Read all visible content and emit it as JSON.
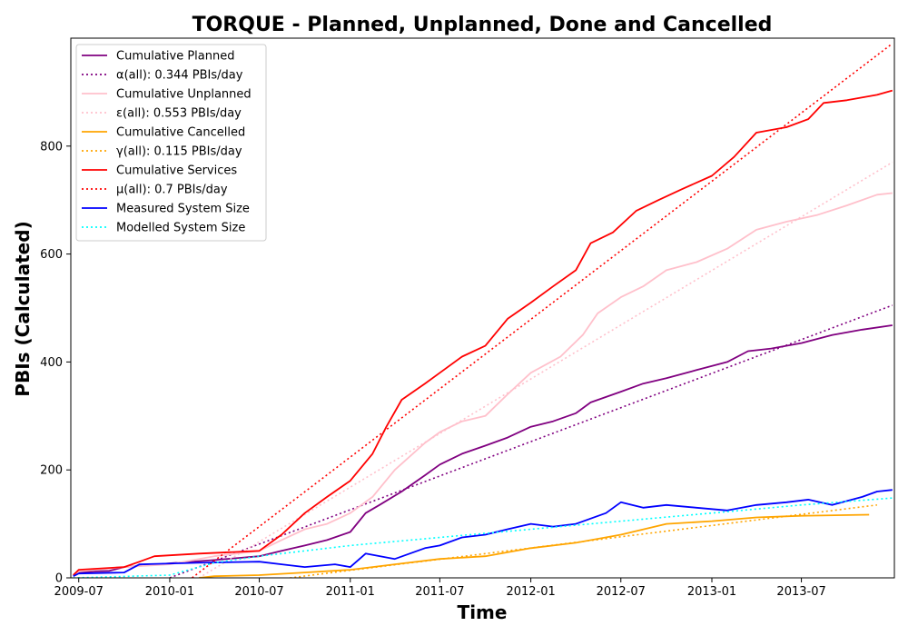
{
  "chart_data": {
    "type": "line",
    "title": "TORQUE - Planned, Unplanned, Done  and Cancelled",
    "xlabel": "Time",
    "ylabel": "PBIs (Calculated)",
    "xlim": [
      "2009-06-15",
      "2014-01-05"
    ],
    "ylim": [
      0,
      1000
    ],
    "x_ticks": [
      "2009-07",
      "2010-01",
      "2010-07",
      "2011-01",
      "2011-07",
      "2012-01",
      "2012-07",
      "2013-01",
      "2013-07"
    ],
    "y_ticks": [
      0,
      200,
      400,
      600,
      800
    ],
    "grid": false,
    "legend_position": "top-left",
    "series": [
      {
        "name": "Cumulative Planned",
        "color": "#800080",
        "style": "solid",
        "points": [
          [
            "2009-06-20",
            5
          ],
          [
            "2009-07-01",
            10
          ],
          [
            "2009-08-01",
            12
          ],
          [
            "2009-09-01",
            13
          ],
          [
            "2009-10-01",
            20
          ],
          [
            "2009-11-01",
            22
          ],
          [
            "2010-01-01",
            27
          ],
          [
            "2010-04-01",
            33
          ],
          [
            "2010-07-01",
            40
          ],
          [
            "2010-08-15",
            50
          ],
          [
            "2010-10-01",
            60
          ],
          [
            "2010-11-15",
            70
          ],
          [
            "2011-01-01",
            85
          ],
          [
            "2011-02-01",
            120
          ],
          [
            "2011-03-01",
            135
          ],
          [
            "2011-04-15",
            160
          ],
          [
            "2011-06-01",
            190
          ],
          [
            "2011-07-01",
            210
          ],
          [
            "2011-08-15",
            230
          ],
          [
            "2011-10-01",
            245
          ],
          [
            "2011-11-15",
            260
          ],
          [
            "2012-01-01",
            280
          ],
          [
            "2012-02-15",
            290
          ],
          [
            "2012-04-01",
            305
          ],
          [
            "2012-05-01",
            325
          ],
          [
            "2012-07-01",
            345
          ],
          [
            "2012-08-15",
            360
          ],
          [
            "2012-10-01",
            370
          ],
          [
            "2012-12-01",
            385
          ],
          [
            "2013-02-01",
            400
          ],
          [
            "2013-03-15",
            420
          ],
          [
            "2013-05-01",
            425
          ],
          [
            "2013-07-01",
            435
          ],
          [
            "2013-09-01",
            450
          ],
          [
            "2013-11-01",
            460
          ],
          [
            "2014-01-01",
            468
          ]
        ]
      },
      {
        "name": "α(all): 0.344 PBIs/day",
        "color": "#800080",
        "style": "dotted",
        "points": [
          [
            "2010-01-01",
            0
          ],
          [
            "2014-01-01",
            505
          ]
        ]
      },
      {
        "name": "Cumulative Unplanned",
        "color": "#ffc0cb",
        "style": "solid",
        "points": [
          [
            "2009-06-20",
            3
          ],
          [
            "2009-07-01",
            12
          ],
          [
            "2009-10-01",
            20
          ],
          [
            "2010-01-01",
            25
          ],
          [
            "2010-04-01",
            40
          ],
          [
            "2010-07-01",
            50
          ],
          [
            "2010-08-15",
            70
          ],
          [
            "2010-10-01",
            90
          ],
          [
            "2010-11-15",
            100
          ],
          [
            "2011-01-01",
            120
          ],
          [
            "2011-02-15",
            150
          ],
          [
            "2011-04-01",
            200
          ],
          [
            "2011-06-01",
            250
          ],
          [
            "2011-07-01",
            270
          ],
          [
            "2011-08-15",
            290
          ],
          [
            "2011-10-01",
            300
          ],
          [
            "2011-11-15",
            340
          ],
          [
            "2012-01-01",
            380
          ],
          [
            "2012-03-01",
            410
          ],
          [
            "2012-04-15",
            450
          ],
          [
            "2012-05-15",
            490
          ],
          [
            "2012-07-01",
            520
          ],
          [
            "2012-08-15",
            540
          ],
          [
            "2012-10-01",
            570
          ],
          [
            "2012-12-01",
            585
          ],
          [
            "2013-02-01",
            610
          ],
          [
            "2013-04-01",
            645
          ],
          [
            "2013-06-01",
            660
          ],
          [
            "2013-08-01",
            672
          ],
          [
            "2013-10-01",
            690
          ],
          [
            "2013-12-01",
            710
          ],
          [
            "2014-01-01",
            713
          ]
        ]
      },
      {
        "name": "ε(all): 0.553 PBIs/day",
        "color": "#ffc0cb",
        "style": "dotted",
        "points": [
          [
            "2010-03-01",
            0
          ],
          [
            "2014-01-01",
            770
          ]
        ]
      },
      {
        "name": "Cumulative Cancelled",
        "color": "#ffa500",
        "style": "solid",
        "points": [
          [
            "2010-03-01",
            0
          ],
          [
            "2010-04-01",
            3
          ],
          [
            "2010-07-01",
            5
          ],
          [
            "2010-10-01",
            10
          ],
          [
            "2011-01-01",
            15
          ],
          [
            "2011-04-01",
            25
          ],
          [
            "2011-07-01",
            35
          ],
          [
            "2011-10-01",
            40
          ],
          [
            "2012-01-01",
            55
          ],
          [
            "2012-04-01",
            65
          ],
          [
            "2012-07-01",
            80
          ],
          [
            "2012-10-01",
            100
          ],
          [
            "2013-01-01",
            105
          ],
          [
            "2013-04-01",
            112
          ],
          [
            "2013-07-01",
            115
          ],
          [
            "2013-11-15",
            117
          ]
        ]
      },
      {
        "name": "γ(all): 0.115 PBIs/day",
        "color": "#ffa500",
        "style": "dotted",
        "points": [
          [
            "2010-09-01",
            0
          ],
          [
            "2013-12-01",
            135
          ]
        ]
      },
      {
        "name": "Cumulative Services",
        "color": "#ff0000",
        "style": "solid",
        "points": [
          [
            "2009-06-20",
            5
          ],
          [
            "2009-07-01",
            15
          ],
          [
            "2009-10-01",
            20
          ],
          [
            "2009-11-01",
            30
          ],
          [
            "2009-12-01",
            40
          ],
          [
            "2010-03-01",
            45
          ],
          [
            "2010-07-01",
            50
          ],
          [
            "2010-08-15",
            80
          ],
          [
            "2010-10-01",
            120
          ],
          [
            "2010-11-15",
            150
          ],
          [
            "2011-01-01",
            180
          ],
          [
            "2011-02-15",
            230
          ],
          [
            "2011-03-15",
            280
          ],
          [
            "2011-04-15",
            330
          ],
          [
            "2011-06-01",
            360
          ],
          [
            "2011-07-01",
            380
          ],
          [
            "2011-08-15",
            410
          ],
          [
            "2011-10-01",
            430
          ],
          [
            "2011-11-15",
            480
          ],
          [
            "2012-01-01",
            510
          ],
          [
            "2012-02-15",
            540
          ],
          [
            "2012-04-01",
            570
          ],
          [
            "2012-05-01",
            620
          ],
          [
            "2012-06-15",
            640
          ],
          [
            "2012-08-01",
            680
          ],
          [
            "2012-09-15",
            700
          ],
          [
            "2012-11-01",
            720
          ],
          [
            "2013-01-01",
            745
          ],
          [
            "2013-02-15",
            780
          ],
          [
            "2013-04-01",
            825
          ],
          [
            "2013-06-01",
            835
          ],
          [
            "2013-07-15",
            850
          ],
          [
            "2013-08-15",
            880
          ],
          [
            "2013-10-01",
            885
          ],
          [
            "2013-12-01",
            895
          ],
          [
            "2014-01-01",
            903
          ]
        ]
      },
      {
        "name": "μ(all): 0.7 PBIs/day",
        "color": "#ff0000",
        "style": "dotted",
        "points": [
          [
            "2010-02-15",
            0
          ],
          [
            "2014-01-01",
            990
          ]
        ]
      },
      {
        "name": "Measured System Size",
        "color": "#0000ff",
        "style": "solid",
        "points": [
          [
            "2009-06-20",
            3
          ],
          [
            "2009-07-01",
            8
          ],
          [
            "2009-10-01",
            10
          ],
          [
            "2009-11-01",
            25
          ],
          [
            "2010-03-01",
            28
          ],
          [
            "2010-07-01",
            30
          ],
          [
            "2010-08-15",
            25
          ],
          [
            "2010-10-01",
            20
          ],
          [
            "2010-12-01",
            25
          ],
          [
            "2011-01-01",
            20
          ],
          [
            "2011-02-01",
            45
          ],
          [
            "2011-04-01",
            35
          ],
          [
            "2011-06-01",
            55
          ],
          [
            "2011-07-01",
            60
          ],
          [
            "2011-08-15",
            75
          ],
          [
            "2011-10-01",
            80
          ],
          [
            "2011-11-15",
            90
          ],
          [
            "2012-01-01",
            100
          ],
          [
            "2012-02-15",
            95
          ],
          [
            "2012-04-01",
            100
          ],
          [
            "2012-06-01",
            120
          ],
          [
            "2012-07-01",
            140
          ],
          [
            "2012-08-15",
            130
          ],
          [
            "2012-10-01",
            135
          ],
          [
            "2012-12-01",
            130
          ],
          [
            "2013-02-01",
            125
          ],
          [
            "2013-04-01",
            135
          ],
          [
            "2013-06-01",
            140
          ],
          [
            "2013-07-15",
            145
          ],
          [
            "2013-09-01",
            135
          ],
          [
            "2013-11-01",
            150
          ],
          [
            "2013-12-01",
            160
          ],
          [
            "2014-01-01",
            163
          ]
        ]
      },
      {
        "name": "Modelled System Size",
        "color": "#00ffff",
        "style": "dotted",
        "points": [
          [
            "2009-06-20",
            0
          ],
          [
            "2010-01-01",
            5
          ],
          [
            "2010-04-01",
            28
          ],
          [
            "2010-07-01",
            40
          ],
          [
            "2011-01-01",
            60
          ],
          [
            "2011-07-01",
            75
          ],
          [
            "2012-01-01",
            90
          ],
          [
            "2012-07-01",
            105
          ],
          [
            "2013-01-01",
            120
          ],
          [
            "2013-07-01",
            135
          ],
          [
            "2014-01-01",
            148
          ]
        ]
      }
    ]
  }
}
